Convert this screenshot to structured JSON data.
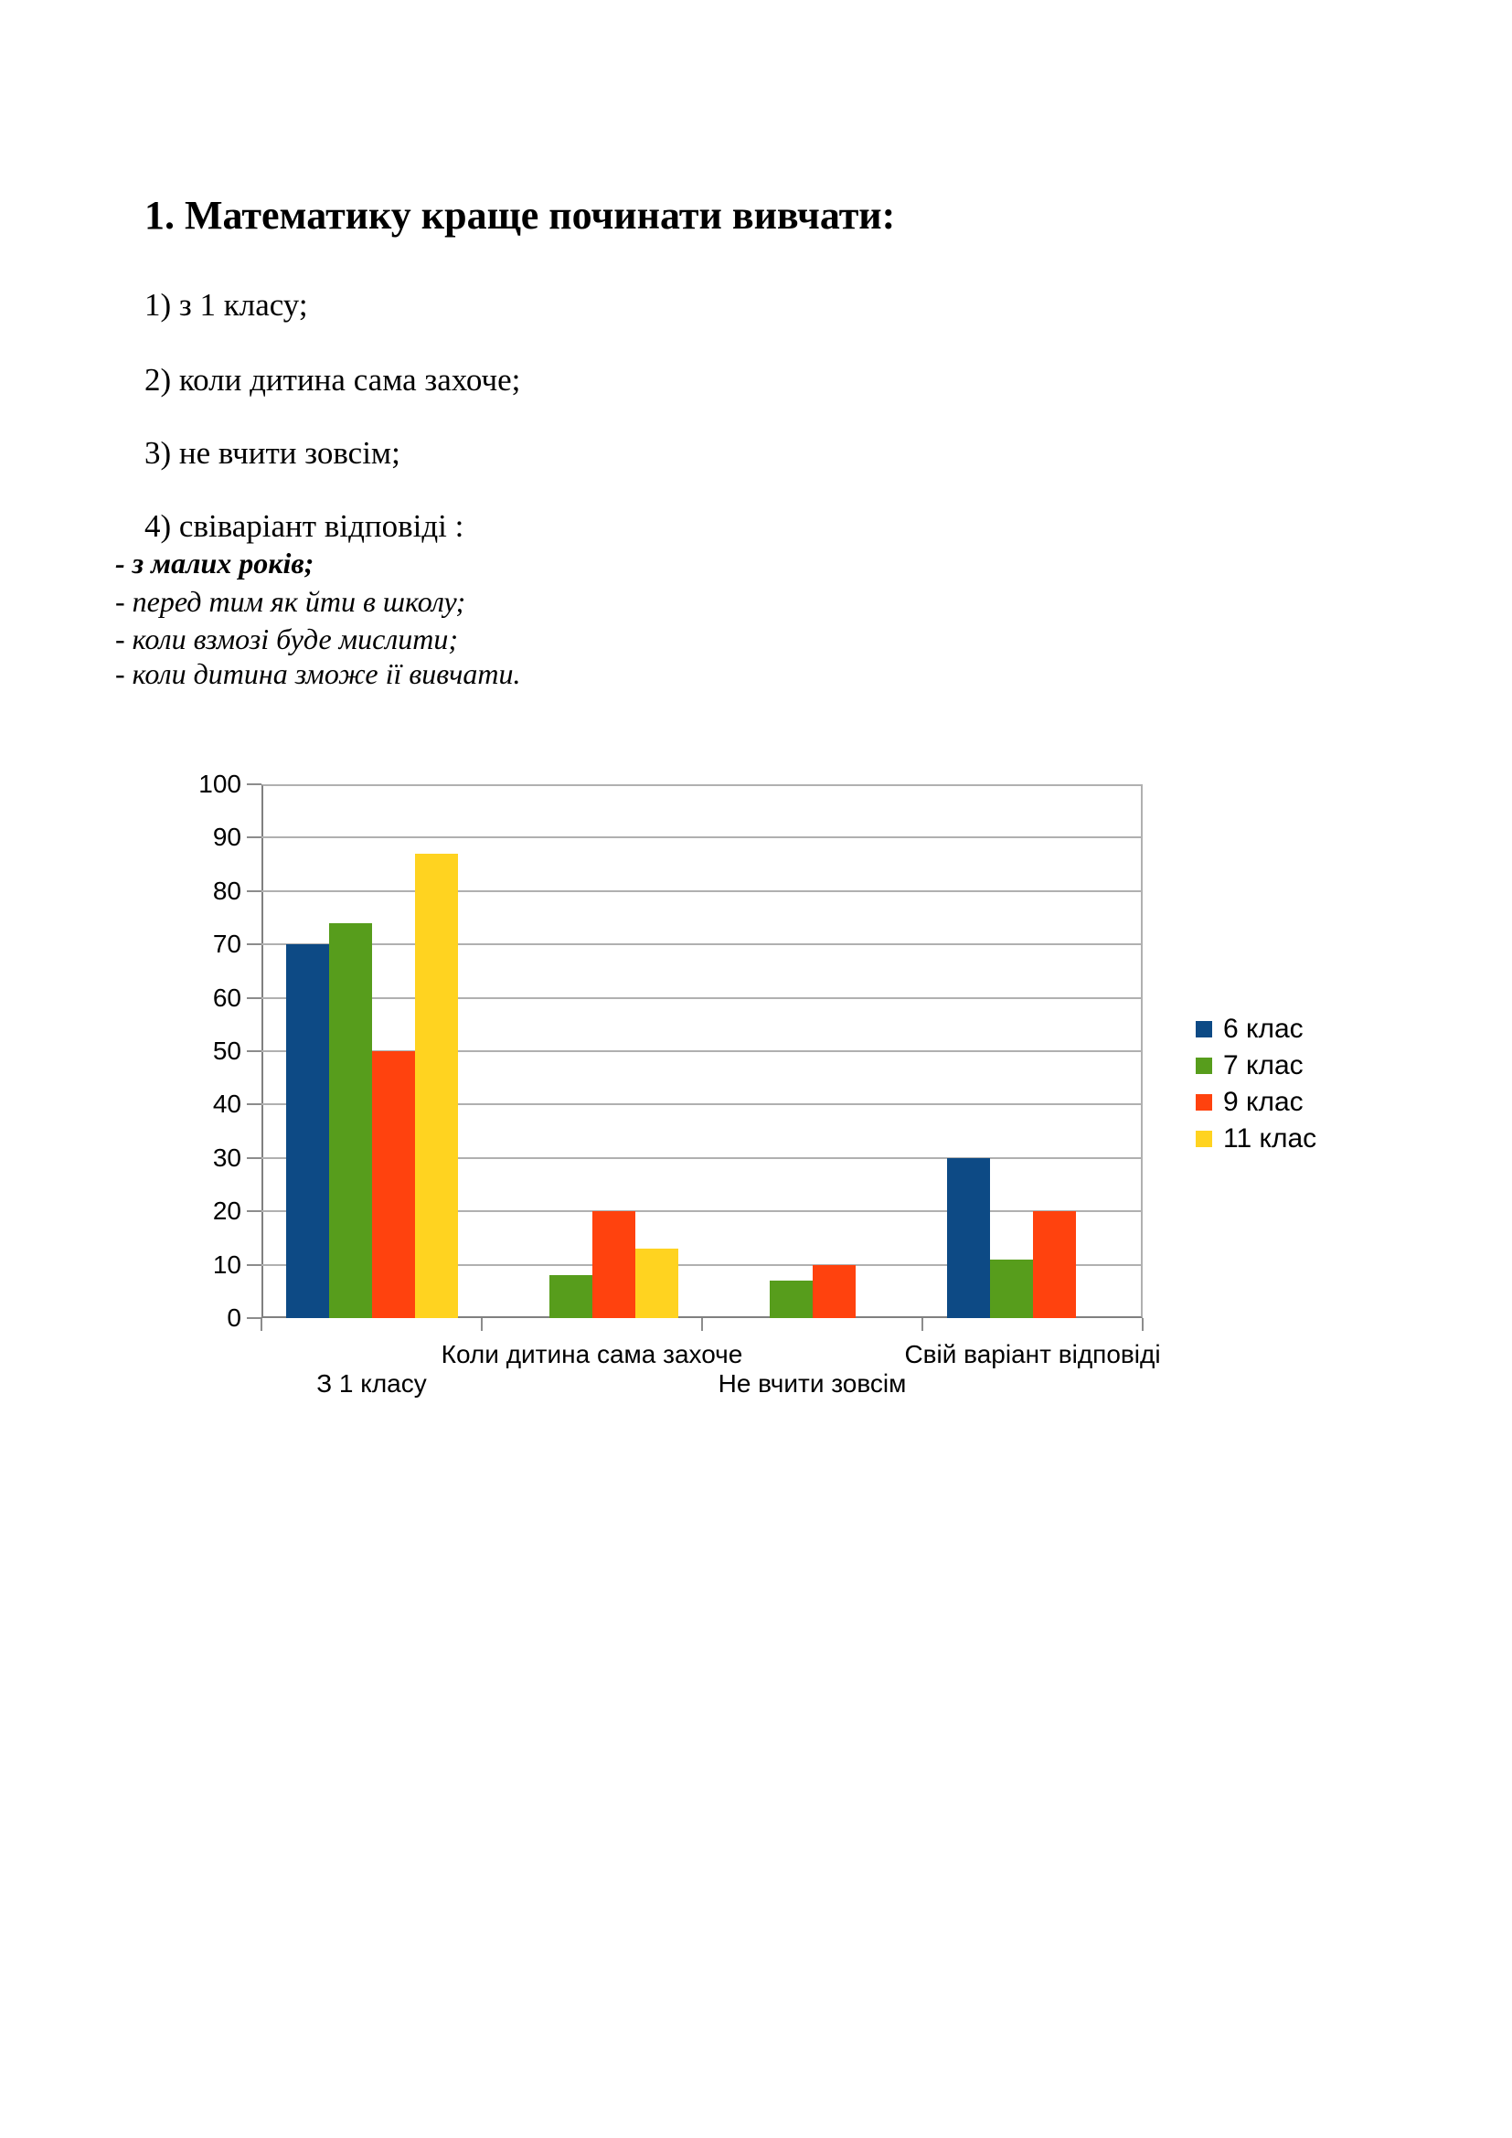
{
  "document": {
    "title": "1. Математику краще починати вивчати:",
    "options": [
      "1) з 1 класу;",
      "2) коли дитина сама захоче;",
      "3) не вчити зовсім;",
      "4) свіваріант відповіді :"
    ],
    "sub_options": [
      "- з малих років;",
      "- перед тим як йти в школу;",
      "- коли взмозі буде мислити;",
      "- коли дитина зможе ії вивчати."
    ]
  },
  "chart_data": {
    "type": "bar",
    "categories": [
      "З 1 класу",
      "Коли дитина сама захоче",
      "Не вчити зовсім",
      "Свій варіант відповіді"
    ],
    "series": [
      {
        "name": "6 клас",
        "color": "#0d4a85",
        "values": [
          70,
          0,
          0,
          30
        ]
      },
      {
        "name": "7 клас",
        "color": "#579d1c",
        "values": [
          74,
          8,
          7,
          11
        ]
      },
      {
        "name": "9 клас",
        "color": "#ff420e",
        "values": [
          50,
          20,
          10,
          20
        ]
      },
      {
        "name": "11 клас",
        "color": "#ffd320",
        "values": [
          87,
          13,
          0,
          0
        ]
      }
    ],
    "ylim": [
      0,
      100
    ],
    "ytick_step": 10,
    "grid": true,
    "legend_position": "right",
    "colors": {
      "gridline": "#b0b0b0",
      "axis": "#808080"
    }
  }
}
